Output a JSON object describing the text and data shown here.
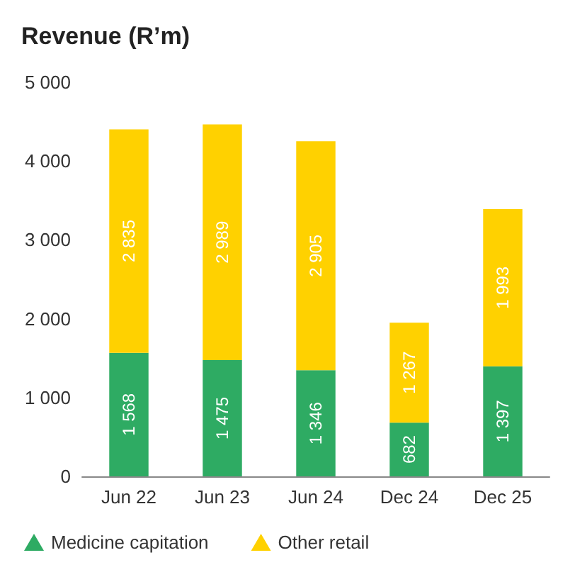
{
  "chart_data": {
    "type": "bar",
    "title": "Revenue (R’m)",
    "stacked": true,
    "categories": [
      "Jun 22",
      "Jun 23",
      "Jun 24",
      "Dec 24",
      "Dec 25"
    ],
    "series": [
      {
        "name": "Medicine capitation",
        "color": "#2eab63",
        "values": [
          1568,
          1475,
          1346,
          682,
          1397
        ],
        "value_labels": [
          "1 568",
          "1 475",
          "1 346",
          "682",
          "1 397"
        ]
      },
      {
        "name": "Other retail",
        "color": "#ffd100",
        "values": [
          2835,
          2989,
          2905,
          1267,
          1993
        ],
        "value_labels": [
          "2 835",
          "2 989",
          "2 905",
          "1 267",
          "1 993"
        ]
      }
    ],
    "ylim": [
      0,
      5000
    ],
    "yticks": [
      0,
      {
        "value": 1000,
        "label": "1 000"
      },
      {
        "value": 2000,
        "label": "2 000"
      },
      {
        "value": 3000,
        "label": "3 000"
      },
      {
        "value": 4000,
        "label": "4 000"
      },
      {
        "value": 5000,
        "label": "5 000"
      }
    ],
    "grid": false,
    "legend": "bottom left"
  }
}
